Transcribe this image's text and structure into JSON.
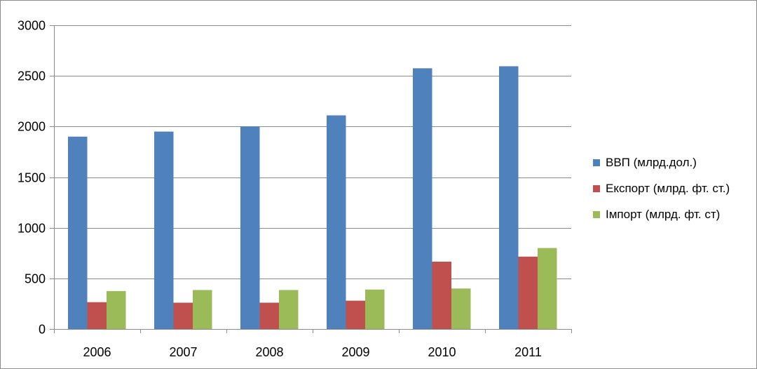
{
  "chart_data": {
    "type": "bar",
    "categories": [
      "2006",
      "2007",
      "2008",
      "2009",
      "2010",
      "2011"
    ],
    "series": [
      {
        "name": "ВВП (млрд.дол.)",
        "color": "#4f81bd",
        "values": [
          1900,
          1950,
          2000,
          2110,
          2575,
          2595
        ]
      },
      {
        "name": "Експорт (млрд. фт. ст.)",
        "color": "#c0504d",
        "values": [
          265,
          260,
          260,
          280,
          665,
          715
        ]
      },
      {
        "name": "Імпорт (млрд. фт. ст)",
        "color": "#9bbb59",
        "values": [
          375,
          385,
          385,
          390,
          400,
          800
        ]
      }
    ],
    "ylim": [
      0,
      3000
    ],
    "yticks": [
      0,
      500,
      1000,
      1500,
      2000,
      2500,
      3000
    ],
    "grid": true,
    "legend_position": "right",
    "title": "",
    "xlabel": "",
    "ylabel": ""
  }
}
